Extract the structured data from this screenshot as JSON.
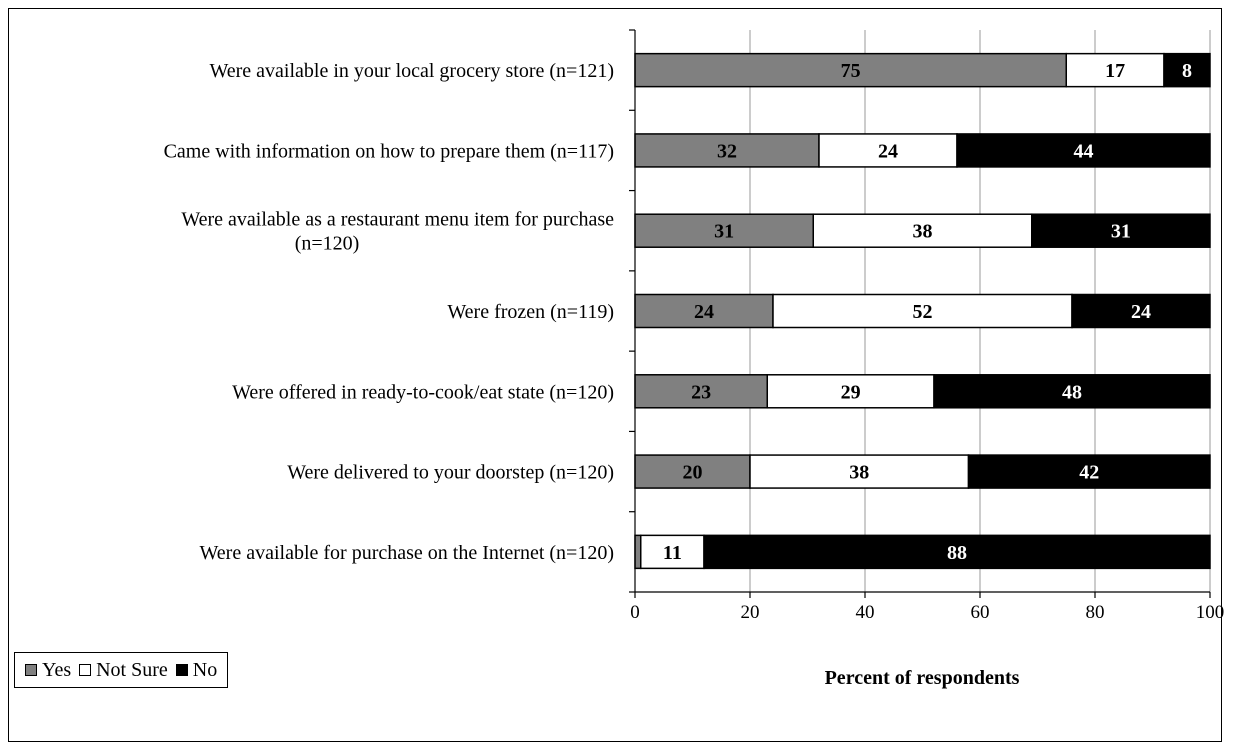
{
  "chart_data": {
    "type": "bar",
    "orientation": "horizontal",
    "stacked": true,
    "categories": [
      [
        "Were available in your local grocery store (n=121)"
      ],
      [
        "Came with information on how to prepare them (n=117)"
      ],
      [
        "Were available as a restaurant menu item for purchase",
        "(n=120)"
      ],
      [
        "Were frozen (n=119)"
      ],
      [
        "Were offered in ready-to-cook/eat state (n=120)"
      ],
      [
        "Were delivered to your doorstep (n=120)"
      ],
      [
        "Were available for purchase on the Internet (n=120)"
      ]
    ],
    "series": [
      {
        "name": "Yes",
        "color": "#808080",
        "label_color": "#000000",
        "values": [
          75,
          32,
          31,
          24,
          23,
          20,
          1
        ],
        "labels": [
          "75",
          "32",
          "31",
          "24",
          "23",
          "20",
          ""
        ]
      },
      {
        "name": "Not Sure",
        "color": "#ffffff",
        "label_color": "#000000",
        "values": [
          17,
          24,
          38,
          52,
          29,
          38,
          11
        ],
        "labels": [
          "17",
          "24",
          "38",
          "52",
          "29",
          "38",
          "11"
        ]
      },
      {
        "name": "No",
        "color": "#000000",
        "label_color": "#ffffff",
        "values": [
          8,
          44,
          31,
          24,
          48,
          42,
          88
        ],
        "labels": [
          "8",
          "44",
          "31",
          "24",
          "48",
          "42",
          "88"
        ]
      }
    ],
    "xlabel": "Percent of respondents",
    "xlim": [
      0,
      100
    ],
    "xticks": [
      0,
      20,
      40,
      60,
      80,
      100
    ],
    "grid": true,
    "legend_position": "bottom-left"
  },
  "legend": {
    "yes_label": "Yes",
    "not_sure_label": "Not Sure",
    "no_label": "No"
  }
}
